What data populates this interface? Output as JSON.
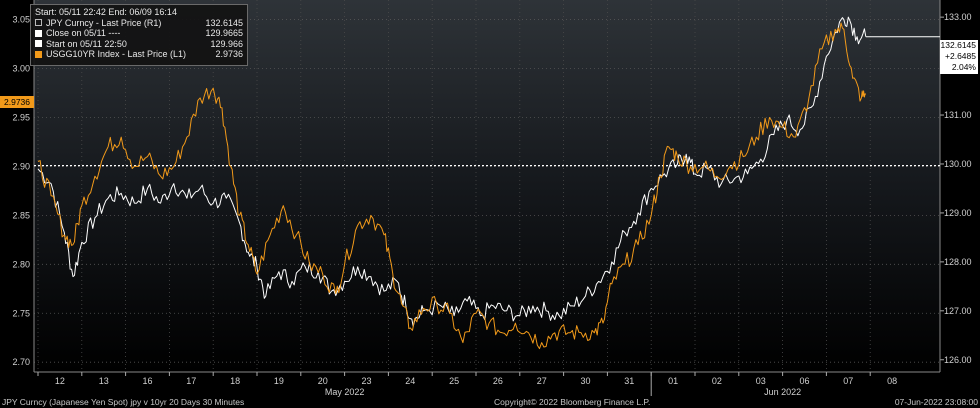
{
  "legend": {
    "header": "Start: 05/11 22:42  End: 06/09 16:14",
    "rows": [
      {
        "name": "JPY Curncy - Last Price (R1)",
        "value": "132.6145",
        "color": "#ffffff",
        "hollow": true
      },
      {
        "name": "Close on 05/11 ----",
        "value": "129.9665",
        "color": "#ffffff",
        "hollow": false
      },
      {
        "name": "Start on 05/11 22:50",
        "value": "129.966",
        "color": "#ffffff",
        "hollow": false
      },
      {
        "name": "USGG10YR Index - Last Price (L1)",
        "value": "2.9736",
        "color": "#f29a1a",
        "hollow": false
      }
    ]
  },
  "right_tag": {
    "line1": "132.6145",
    "line2": "+2.6485",
    "line3": "2.04%"
  },
  "left_tag": "2.9736",
  "footer": {
    "left": "JPY Curncy (Japanese Yen Spot) jpy v 10yr 20 Days 30 Minutes",
    "center": "Copyright© 2022 Bloomberg Finance L.P.",
    "right": "07-Jun-2022 23:08:00"
  },
  "chart_data": {
    "type": "line",
    "left_axis": {
      "ticks": [
        "2.70",
        "2.75",
        "2.80",
        "2.85",
        "2.90",
        "2.95",
        "3.00",
        "3.05"
      ],
      "range": [
        2.69,
        3.07
      ]
    },
    "right_axis": {
      "ticks": [
        "126.00",
        "127.00",
        "128.00",
        "129.00",
        "130.00",
        "131.00",
        "132.00",
        "133.00"
      ],
      "range": [
        125.75,
        133.35
      ]
    },
    "x_ticks": [
      "12",
      "13",
      "16",
      "17",
      "18",
      "19",
      "20",
      "23",
      "24",
      "25",
      "26",
      "27",
      "30",
      "31",
      "01",
      "02",
      "03",
      "06",
      "07",
      "08"
    ],
    "month_labels": [
      "May 2022",
      "Jun 2022"
    ],
    "reference_line": {
      "axis": "right",
      "value": 129.9665
    },
    "series": [
      {
        "name": "JPY Curncy - Last Price (R1)",
        "axis": "right",
        "color": "#ffffff",
        "points": [
          [
            0,
            129.9
          ],
          [
            0.3,
            129.6
          ],
          [
            0.6,
            128.6
          ],
          [
            0.8,
            127.7
          ],
          [
            1.0,
            128.4
          ],
          [
            1.3,
            128.9
          ],
          [
            1.6,
            129.3
          ],
          [
            1.9,
            129.4
          ],
          [
            2.2,
            129.2
          ],
          [
            2.5,
            129.5
          ],
          [
            2.8,
            129.2
          ],
          [
            3.1,
            129.6
          ],
          [
            3.4,
            129.3
          ],
          [
            3.7,
            129.5
          ],
          [
            4.0,
            129.2
          ],
          [
            4.3,
            129.3
          ],
          [
            4.6,
            128.8
          ],
          [
            4.8,
            128.2
          ],
          [
            5.0,
            127.9
          ],
          [
            5.2,
            127.3
          ],
          [
            5.5,
            127.8
          ],
          [
            5.8,
            127.6
          ],
          [
            6.1,
            127.9
          ],
          [
            6.4,
            127.8
          ],
          [
            6.7,
            127.4
          ],
          [
            7.0,
            127.6
          ],
          [
            7.3,
            127.9
          ],
          [
            7.6,
            127.7
          ],
          [
            7.9,
            127.4
          ],
          [
            8.2,
            127.6
          ],
          [
            8.4,
            127.1
          ],
          [
            8.6,
            126.8
          ],
          [
            8.8,
            127.0
          ],
          [
            9.2,
            127.1
          ],
          [
            9.5,
            126.9
          ],
          [
            9.8,
            127.2
          ],
          [
            10.1,
            126.9
          ],
          [
            10.4,
            127.1
          ],
          [
            10.7,
            127.0
          ],
          [
            11.0,
            126.9
          ],
          [
            11.3,
            127.1
          ],
          [
            11.6,
            127.0
          ],
          [
            11.9,
            126.9
          ],
          [
            12.2,
            127.1
          ],
          [
            12.5,
            127.3
          ],
          [
            12.8,
            127.6
          ],
          [
            13.1,
            128.0
          ],
          [
            13.4,
            128.6
          ],
          [
            13.7,
            129.0
          ],
          [
            14.0,
            129.5
          ],
          [
            14.3,
            129.8
          ],
          [
            14.6,
            130.0
          ],
          [
            14.8,
            130.2
          ],
          [
            15.0,
            129.8
          ],
          [
            15.3,
            129.9
          ],
          [
            15.6,
            129.6
          ],
          [
            15.9,
            129.7
          ],
          [
            16.2,
            129.8
          ],
          [
            16.5,
            130.1
          ],
          [
            16.8,
            130.6
          ],
          [
            17.1,
            130.9
          ],
          [
            17.4,
            130.7
          ],
          [
            17.7,
            131.2
          ],
          [
            18.0,
            132.2
          ],
          [
            18.3,
            132.9
          ],
          [
            18.5,
            133.0
          ],
          [
            18.7,
            132.6
          ],
          [
            18.9,
            132.6
          ]
        ]
      },
      {
        "name": "USGG10YR Index - Last Price (L1)",
        "axis": "left",
        "color": "#f29a1a",
        "points": [
          [
            0,
            2.905
          ],
          [
            0.3,
            2.87
          ],
          [
            0.6,
            2.83
          ],
          [
            0.8,
            2.82
          ],
          [
            1.0,
            2.86
          ],
          [
            1.3,
            2.89
          ],
          [
            1.6,
            2.92
          ],
          [
            1.9,
            2.93
          ],
          [
            2.2,
            2.9
          ],
          [
            2.5,
            2.91
          ],
          [
            2.8,
            2.89
          ],
          [
            3.1,
            2.9
          ],
          [
            3.4,
            2.93
          ],
          [
            3.7,
            2.97
          ],
          [
            4.0,
            2.98
          ],
          [
            4.2,
            2.96
          ],
          [
            4.4,
            2.9
          ],
          [
            4.6,
            2.85
          ],
          [
            4.8,
            2.82
          ],
          [
            5.0,
            2.79
          ],
          [
            5.3,
            2.83
          ],
          [
            5.6,
            2.86
          ],
          [
            5.9,
            2.83
          ],
          [
            6.2,
            2.8
          ],
          [
            6.5,
            2.79
          ],
          [
            6.8,
            2.77
          ],
          [
            7.0,
            2.8
          ],
          [
            7.3,
            2.84
          ],
          [
            7.6,
            2.85
          ],
          [
            7.9,
            2.83
          ],
          [
            8.1,
            2.79
          ],
          [
            8.3,
            2.76
          ],
          [
            8.5,
            2.735
          ],
          [
            8.8,
            2.755
          ],
          [
            9.1,
            2.76
          ],
          [
            9.4,
            2.75
          ],
          [
            9.7,
            2.72
          ],
          [
            10.0,
            2.75
          ],
          [
            10.3,
            2.74
          ],
          [
            10.6,
            2.73
          ],
          [
            10.9,
            2.74
          ],
          [
            11.2,
            2.73
          ],
          [
            11.5,
            2.72
          ],
          [
            11.8,
            2.73
          ],
          [
            12.1,
            2.73
          ],
          [
            12.4,
            2.73
          ],
          [
            12.7,
            2.73
          ],
          [
            12.9,
            2.74
          ],
          [
            13.1,
            2.78
          ],
          [
            13.4,
            2.8
          ],
          [
            13.7,
            2.82
          ],
          [
            14.0,
            2.85
          ],
          [
            14.2,
            2.89
          ],
          [
            14.4,
            2.92
          ],
          [
            14.6,
            2.91
          ],
          [
            14.9,
            2.9
          ],
          [
            15.2,
            2.9
          ],
          [
            15.5,
            2.89
          ],
          [
            15.8,
            2.9
          ],
          [
            16.1,
            2.91
          ],
          [
            16.4,
            2.93
          ],
          [
            16.7,
            2.95
          ],
          [
            17.0,
            2.94
          ],
          [
            17.3,
            2.93
          ],
          [
            17.6,
            2.97
          ],
          [
            17.9,
            3.02
          ],
          [
            18.2,
            3.04
          ],
          [
            18.4,
            3.04
          ],
          [
            18.6,
            2.99
          ],
          [
            18.8,
            2.97
          ],
          [
            18.9,
            2.9736
          ]
        ]
      }
    ]
  }
}
